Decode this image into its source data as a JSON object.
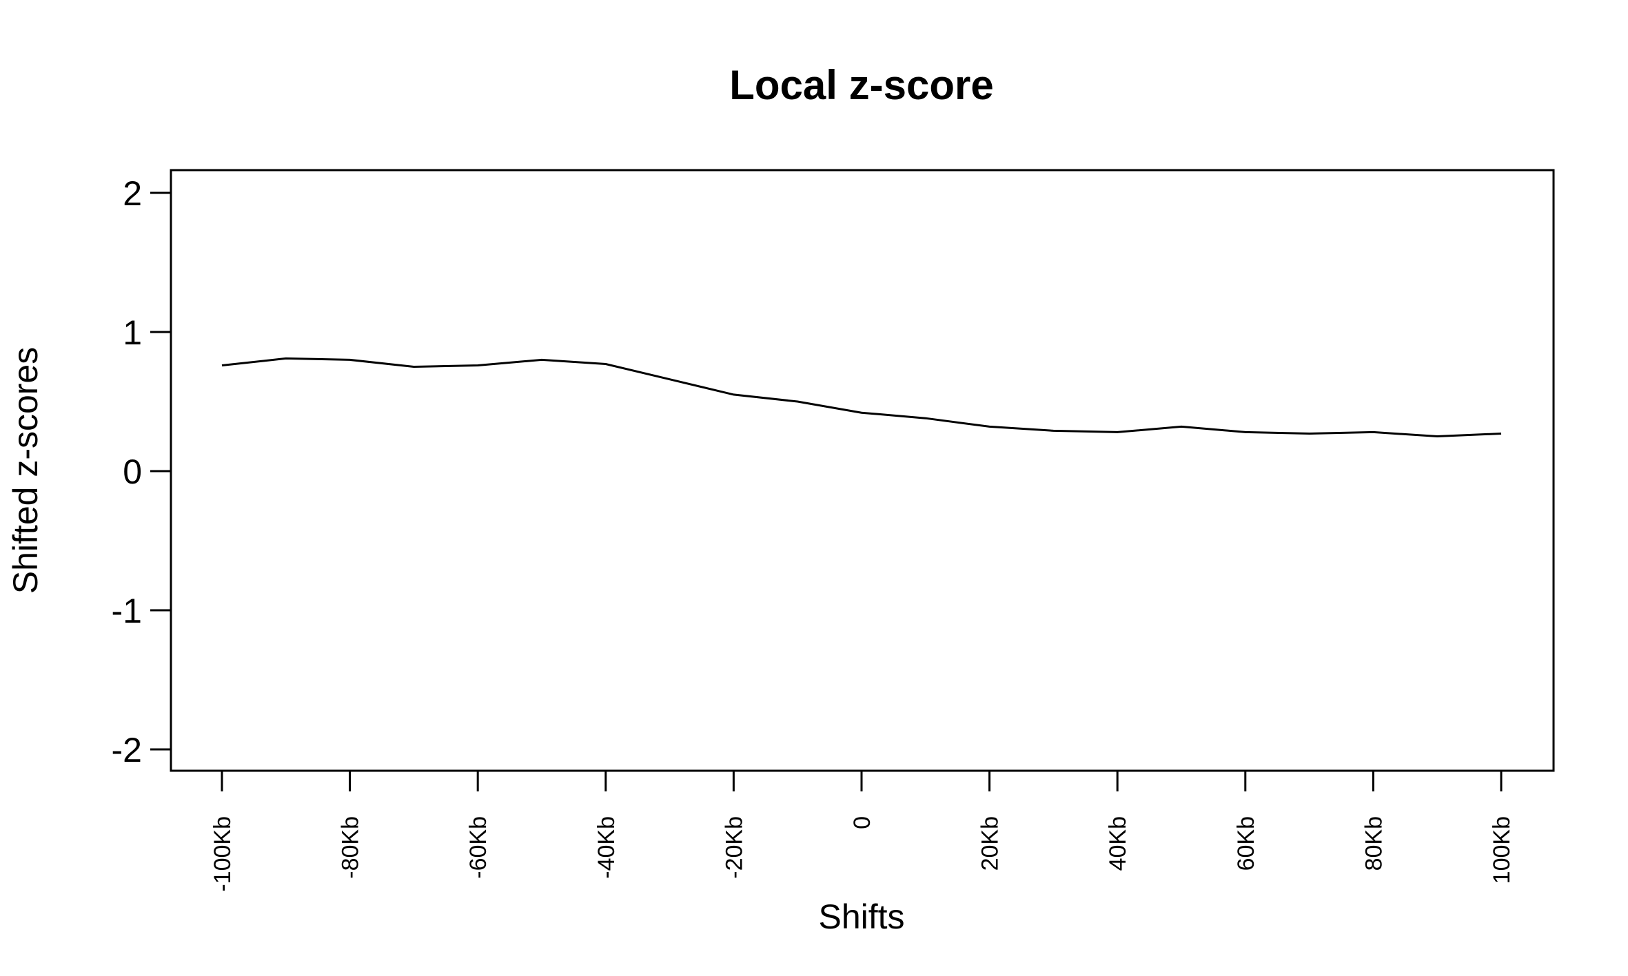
{
  "chart_data": {
    "type": "line",
    "title": "Local z-score",
    "xlabel": "Shifts",
    "ylabel": "Shifted z-scores",
    "x_unit": "Kb",
    "xlim": [
      -100,
      100
    ],
    "ylim": [
      -2,
      2
    ],
    "x_ticks": [
      {
        "value": -100,
        "label": "-100Kb"
      },
      {
        "value": -80,
        "label": "-80Kb"
      },
      {
        "value": -60,
        "label": "-60Kb"
      },
      {
        "value": -40,
        "label": "-40Kb"
      },
      {
        "value": -20,
        "label": "-20Kb"
      },
      {
        "value": 0,
        "label": "0"
      },
      {
        "value": 20,
        "label": "20Kb"
      },
      {
        "value": 40,
        "label": "40Kb"
      },
      {
        "value": 60,
        "label": "60Kb"
      },
      {
        "value": 80,
        "label": "80Kb"
      },
      {
        "value": 100,
        "label": "100Kb"
      }
    ],
    "y_ticks": [
      {
        "value": -2,
        "label": "-2"
      },
      {
        "value": -1,
        "label": "-1"
      },
      {
        "value": 0,
        "label": "0"
      },
      {
        "value": 1,
        "label": "1"
      },
      {
        "value": 2,
        "label": "2"
      }
    ],
    "grid": false,
    "legend": "none",
    "series": [
      {
        "color": "#000000",
        "x": [
          -100,
          -90,
          -80,
          -70,
          -60,
          -50,
          -40,
          -30,
          -20,
          -10,
          0,
          10,
          20,
          30,
          40,
          50,
          60,
          70,
          80,
          90,
          100
        ],
        "y": [
          0.76,
          0.81,
          0.8,
          0.75,
          0.76,
          0.8,
          0.77,
          0.66,
          0.55,
          0.5,
          0.42,
          0.38,
          0.32,
          0.29,
          0.28,
          0.32,
          0.28,
          0.27,
          0.28,
          0.25,
          0.27
        ]
      }
    ]
  }
}
